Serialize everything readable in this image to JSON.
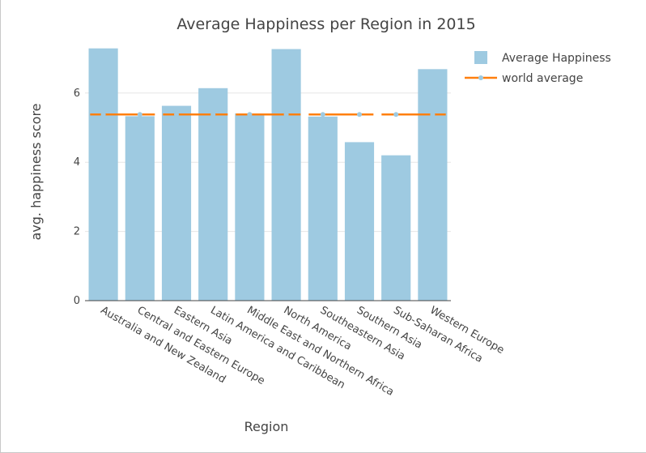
{
  "chart_data": {
    "type": "bar",
    "title": "Average Happiness per Region in 2015",
    "xlabel": "Region",
    "ylabel": "avg. happiness score",
    "ylim": [
      0,
      7.4
    ],
    "yticks": [
      0,
      2,
      4,
      6
    ],
    "grid": true,
    "legend_position": "top-right",
    "categories": [
      "Australia and New Zealand",
      "Central and Eastern Europe",
      "Eastern Asia",
      "Latin America and Caribbean",
      "Middle East and Northern Africa",
      "North America",
      "Southeastern Asia",
      "Southern Asia",
      "Sub-Saharan Africa",
      "Western Europe"
    ],
    "series": [
      {
        "name": "Average Happiness",
        "type": "bar",
        "color": "#9ecae1",
        "values": [
          7.29,
          5.33,
          5.63,
          6.14,
          5.41,
          7.27,
          5.32,
          4.58,
          4.2,
          6.69
        ]
      },
      {
        "name": "world average",
        "type": "line",
        "color": "#ff7f0e",
        "marker_color": "#9ecae1",
        "dash": "dashed",
        "values": [
          5.38,
          5.38,
          5.38,
          5.38,
          5.38,
          5.38,
          5.38,
          5.38,
          5.38,
          5.38
        ]
      }
    ]
  }
}
